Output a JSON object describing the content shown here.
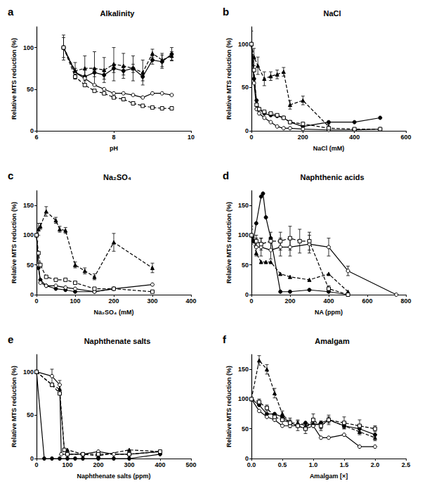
{
  "chart_data": [
    {
      "type": "line",
      "panel_label": "a",
      "title": "Alkalinity",
      "x_label": "pH",
      "y_label": "Relative MTS reduction (%)",
      "xlim": [
        6,
        10
      ],
      "xticks": [
        6,
        8,
        10
      ],
      "ylim": [
        0,
        125
      ],
      "yticks": [
        0,
        50,
        100
      ],
      "grid": false,
      "series": [
        {
          "color": "#000000",
          "marker": "filled_circle",
          "line_style": "solid",
          "x": [
            6.7,
            7.0,
            7.25,
            7.5,
            7.75,
            8.0,
            8.25,
            8.5,
            8.75,
            9.0,
            9.25,
            9.5
          ],
          "values": [
            100,
            70,
            65,
            70,
            67,
            75,
            72,
            75,
            65,
            85,
            83,
            92
          ],
          "errors": [
            12,
            5,
            8,
            5,
            5,
            5,
            5,
            5,
            5,
            5,
            8,
            8
          ]
        },
        {
          "color": "#000000",
          "marker": "open_circle",
          "line_style": "solid",
          "x": [
            6.7,
            7.0,
            7.25,
            7.5,
            7.75,
            8.0,
            8.25,
            8.5,
            8.75,
            9.0,
            9.25,
            9.5
          ],
          "values": [
            100,
            70,
            63,
            55,
            50,
            45,
            45,
            43,
            40,
            45,
            45,
            43
          ]
        },
        {
          "color": "#000000",
          "marker": "filled_triangle",
          "line_style": "dashed",
          "x": [
            6.7,
            7.0,
            7.25,
            7.5,
            7.75,
            8.0,
            8.25,
            8.5,
            8.75,
            9.0,
            9.25,
            9.5
          ],
          "values": [
            100,
            72,
            75,
            75,
            73,
            80,
            78,
            75,
            70,
            93,
            85,
            90
          ],
          "errors": [
            15,
            10,
            15,
            20,
            15,
            20,
            15,
            15,
            15,
            5,
            8,
            5
          ]
        },
        {
          "color": "#000000",
          "marker": "open_square",
          "line_style": "dashed",
          "x": [
            6.7,
            7.0,
            7.25,
            7.5,
            7.75,
            8.0,
            8.25,
            8.5,
            8.75,
            9.0,
            9.25,
            9.5
          ],
          "values": [
            100,
            65,
            55,
            48,
            45,
            40,
            38,
            33,
            30,
            28,
            27,
            27
          ]
        }
      ]
    },
    {
      "type": "line",
      "panel_label": "b",
      "title": "NaCl",
      "x_label": "NaCl (mM)",
      "y_label": "Relative MTS reduction (%)",
      "xlim": [
        0,
        600
      ],
      "xticks": [
        0,
        200,
        400,
        600
      ],
      "ylim": [
        0,
        120
      ],
      "yticks": [
        0,
        50,
        100
      ],
      "grid": false,
      "series": [
        {
          "color": "#000000",
          "marker": "filled_circle",
          "line_style": "solid",
          "x": [
            0,
            10,
            20,
            30,
            50,
            75,
            100,
            125,
            150,
            200,
            300,
            400,
            500
          ],
          "values": [
            100,
            60,
            35,
            25,
            20,
            18,
            17,
            15,
            10,
            5,
            10,
            10,
            15
          ]
        },
        {
          "color": "#000000",
          "marker": "open_circle",
          "line_style": "solid",
          "x": [
            0,
            10,
            20,
            30,
            50,
            75,
            100,
            125,
            150,
            200,
            300,
            400,
            500
          ],
          "values": [
            100,
            55,
            25,
            20,
            15,
            10,
            5,
            3,
            3,
            2,
            1,
            1,
            2
          ]
        },
        {
          "color": "#000000",
          "marker": "filled_triangle",
          "line_style": "dashed",
          "x": [
            0,
            10,
            25,
            50,
            75,
            100,
            125,
            150,
            200,
            300
          ],
          "values": [
            100,
            85,
            75,
            60,
            63,
            65,
            68,
            30,
            35,
            5
          ],
          "errors": [
            15,
            10,
            10,
            8,
            5,
            5,
            5,
            5,
            5,
            3
          ]
        },
        {
          "color": "#000000",
          "marker": "open_square",
          "line_style": "dashed",
          "x": [
            0,
            10,
            20,
            30,
            50,
            75,
            100,
            125,
            150,
            200,
            300,
            400,
            500
          ],
          "values": [
            100,
            70,
            30,
            25,
            22,
            20,
            18,
            15,
            10,
            8,
            3,
            2,
            2
          ]
        }
      ]
    },
    {
      "type": "line",
      "panel_label": "c",
      "title": "Na₂SO₄",
      "x_label": "Na₂SO₄ (mM)",
      "y_label": "Relative MTS reduction (%)",
      "xlim": [
        0,
        400
      ],
      "xticks": [
        0,
        100,
        200,
        300,
        400
      ],
      "ylim": [
        0,
        175
      ],
      "yticks": [
        0,
        50,
        100,
        150
      ],
      "grid": false,
      "series": [
        {
          "color": "#000000",
          "marker": "filled_circle",
          "line_style": "solid",
          "x": [
            0,
            5,
            10,
            25,
            50,
            75,
            100,
            150,
            200
          ],
          "values": [
            100,
            45,
            25,
            15,
            10,
            8,
            5,
            5,
            10
          ]
        },
        {
          "color": "#000000",
          "marker": "open_circle",
          "line_style": "solid",
          "x": [
            0,
            5,
            10,
            25,
            50,
            75,
            100,
            150,
            200,
            300
          ],
          "values": [
            100,
            50,
            20,
            15,
            15,
            12,
            10,
            5,
            10,
            17
          ]
        },
        {
          "color": "#000000",
          "marker": "filled_triangle",
          "line_style": "dashed",
          "x": [
            0,
            5,
            10,
            25,
            50,
            60,
            75,
            100,
            125,
            150,
            200,
            300
          ],
          "values": [
            100,
            110,
            115,
            140,
            125,
            110,
            108,
            50,
            40,
            30,
            88,
            45
          ],
          "errors": [
            10,
            10,
            5,
            8,
            5,
            5,
            5,
            5,
            5,
            5,
            15,
            8
          ]
        },
        {
          "color": "#000000",
          "marker": "open_square",
          "line_style": "dashed",
          "x": [
            0,
            5,
            10,
            25,
            50,
            75,
            100,
            150,
            200,
            300
          ],
          "values": [
            100,
            70,
            50,
            30,
            25,
            25,
            20,
            10,
            10,
            5
          ]
        }
      ]
    },
    {
      "type": "line",
      "panel_label": "d",
      "title": "Naphthenic acids",
      "x_label": "NA (ppm)",
      "y_label": "Relative MTS reduction (%)",
      "xlim": [
        0,
        800
      ],
      "xticks": [
        0,
        200,
        400,
        600,
        800
      ],
      "ylim": [
        0,
        175
      ],
      "yticks": [
        0,
        50,
        100,
        150
      ],
      "grid": false,
      "series": [
        {
          "color": "#000000",
          "marker": "filled_circle",
          "line_style": "solid",
          "x": [
            0,
            10,
            25,
            50,
            60,
            75,
            100,
            150,
            200,
            300,
            400,
            500
          ],
          "values": [
            100,
            90,
            120,
            165,
            170,
            130,
            95,
            5,
            5,
            8,
            5,
            0
          ]
        },
        {
          "color": "#000000",
          "marker": "open_circle",
          "line_style": "solid",
          "x": [
            0,
            25,
            50,
            100,
            150,
            200,
            300,
            400,
            500,
            750
          ],
          "values": [
            100,
            80,
            80,
            75,
            80,
            80,
            85,
            80,
            40,
            0
          ],
          "errors": [
            15,
            15,
            15,
            15,
            15,
            15,
            15,
            15,
            8,
            0
          ]
        },
        {
          "color": "#000000",
          "marker": "filled_triangle",
          "line_style": "dashed",
          "x": [
            0,
            25,
            50,
            75,
            100,
            150,
            200,
            300,
            400,
            500
          ],
          "values": [
            100,
            70,
            55,
            55,
            55,
            35,
            30,
            25,
            35,
            5
          ]
        },
        {
          "color": "#000000",
          "marker": "open_square",
          "line_style": "dashed",
          "x": [
            0,
            25,
            50,
            100,
            150,
            200,
            250,
            300,
            400,
            500
          ],
          "values": [
            100,
            90,
            85,
            90,
            90,
            95,
            90,
            90,
            10,
            0
          ],
          "errors": [
            10,
            10,
            10,
            15,
            15,
            20,
            20,
            15,
            5,
            0
          ]
        }
      ]
    },
    {
      "type": "line",
      "panel_label": "e",
      "title": "Naphthenate salts",
      "x_label": "Naphthenate salts (ppm)",
      "y_label": "Relative MTS reduction (%)",
      "xlim": [
        0,
        500
      ],
      "xticks": [
        0,
        100,
        200,
        300,
        400,
        500
      ],
      "ylim": [
        0,
        120
      ],
      "yticks": [
        0,
        50,
        100
      ],
      "grid": false,
      "series": [
        {
          "color": "#000000",
          "marker": "filled_circle",
          "line_style": "solid",
          "x": [
            0,
            25,
            50,
            75,
            100,
            125,
            150,
            200,
            250,
            300,
            400
          ],
          "values": [
            100,
            0,
            0,
            0,
            0,
            0,
            0,
            0,
            0,
            0,
            5
          ]
        },
        {
          "color": "#000000",
          "marker": "open_circle",
          "line_style": "solid",
          "x": [
            0,
            50,
            75,
            80,
            100,
            150,
            200,
            250,
            300,
            400
          ],
          "values": [
            100,
            95,
            85,
            5,
            5,
            5,
            8,
            5,
            5,
            8
          ],
          "errors": [
            0,
            8,
            5,
            0,
            0,
            0,
            0,
            0,
            0,
            0
          ]
        },
        {
          "color": "#000000",
          "marker": "filled_triangle",
          "line_style": "dashed",
          "x": [
            0,
            50,
            75,
            90,
            100,
            150,
            200,
            300,
            400
          ],
          "values": [
            100,
            85,
            80,
            10,
            10,
            5,
            3,
            10,
            8
          ]
        },
        {
          "color": "#000000",
          "marker": "open_square",
          "line_style": "dashed",
          "x": [
            0,
            50,
            75,
            90,
            100,
            150,
            200,
            300,
            400
          ],
          "values": [
            100,
            85,
            75,
            10,
            5,
            5,
            5,
            5,
            8
          ]
        }
      ]
    },
    {
      "type": "line",
      "panel_label": "f",
      "title": "Amalgam",
      "x_label": "Amalgam [×]",
      "y_label": "Relative MTS reduction (%)",
      "xlim": [
        0,
        2.5
      ],
      "xticks": [
        {
          "value": 0,
          "label": "0.0"
        },
        0.5,
        {
          "value": 1,
          "label": "1.0"
        },
        1.5,
        {
          "value": 2,
          "label": "2.0"
        },
        2.5
      ],
      "ylim": [
        0,
        175
      ],
      "yticks": [
        0,
        50,
        100,
        150
      ],
      "grid": false,
      "series": [
        {
          "color": "#000000",
          "marker": "filled_circle",
          "line_style": "solid",
          "x": [
            0,
            0.125,
            0.25,
            0.375,
            0.5,
            0.625,
            0.75,
            0.875,
            1.0,
            1.125,
            1.25,
            1.5,
            1.75,
            2.0
          ],
          "values": [
            100,
            90,
            75,
            75,
            70,
            60,
            55,
            60,
            55,
            60,
            65,
            55,
            50,
            40
          ]
        },
        {
          "color": "#000000",
          "marker": "open_circle",
          "line_style": "solid",
          "x": [
            0,
            0.125,
            0.25,
            0.375,
            0.5,
            0.625,
            0.75,
            0.875,
            1.0,
            1.125,
            1.25,
            1.5,
            1.75,
            2.0
          ],
          "values": [
            100,
            80,
            70,
            65,
            55,
            55,
            55,
            50,
            55,
            35,
            35,
            40,
            20,
            20
          ]
        },
        {
          "color": "#000000",
          "marker": "filled_triangle",
          "line_style": "dashed",
          "x": [
            0,
            0.125,
            0.25,
            0.375,
            0.5,
            0.625,
            0.75,
            0.875,
            1.0,
            1.125,
            1.25,
            1.5,
            1.75,
            2.0
          ],
          "values": [
            100,
            165,
            150,
            110,
            75,
            60,
            60,
            55,
            60,
            55,
            65,
            55,
            45,
            35
          ],
          "errors": [
            0,
            8,
            8,
            8,
            5,
            5,
            5,
            5,
            5,
            5,
            5,
            5,
            5,
            5
          ]
        },
        {
          "color": "#000000",
          "marker": "open_square",
          "line_style": "dashed",
          "x": [
            0,
            0.125,
            0.25,
            0.375,
            0.5,
            0.625,
            0.75,
            0.875,
            1.0,
            1.125,
            1.25,
            1.5,
            1.75,
            2.0
          ],
          "values": [
            100,
            95,
            85,
            70,
            65,
            60,
            55,
            50,
            65,
            55,
            65,
            60,
            55,
            50
          ],
          "errors": [
            0,
            5,
            5,
            5,
            8,
            8,
            8,
            8,
            10,
            8,
            8,
            10,
            10,
            5
          ]
        }
      ]
    }
  ]
}
